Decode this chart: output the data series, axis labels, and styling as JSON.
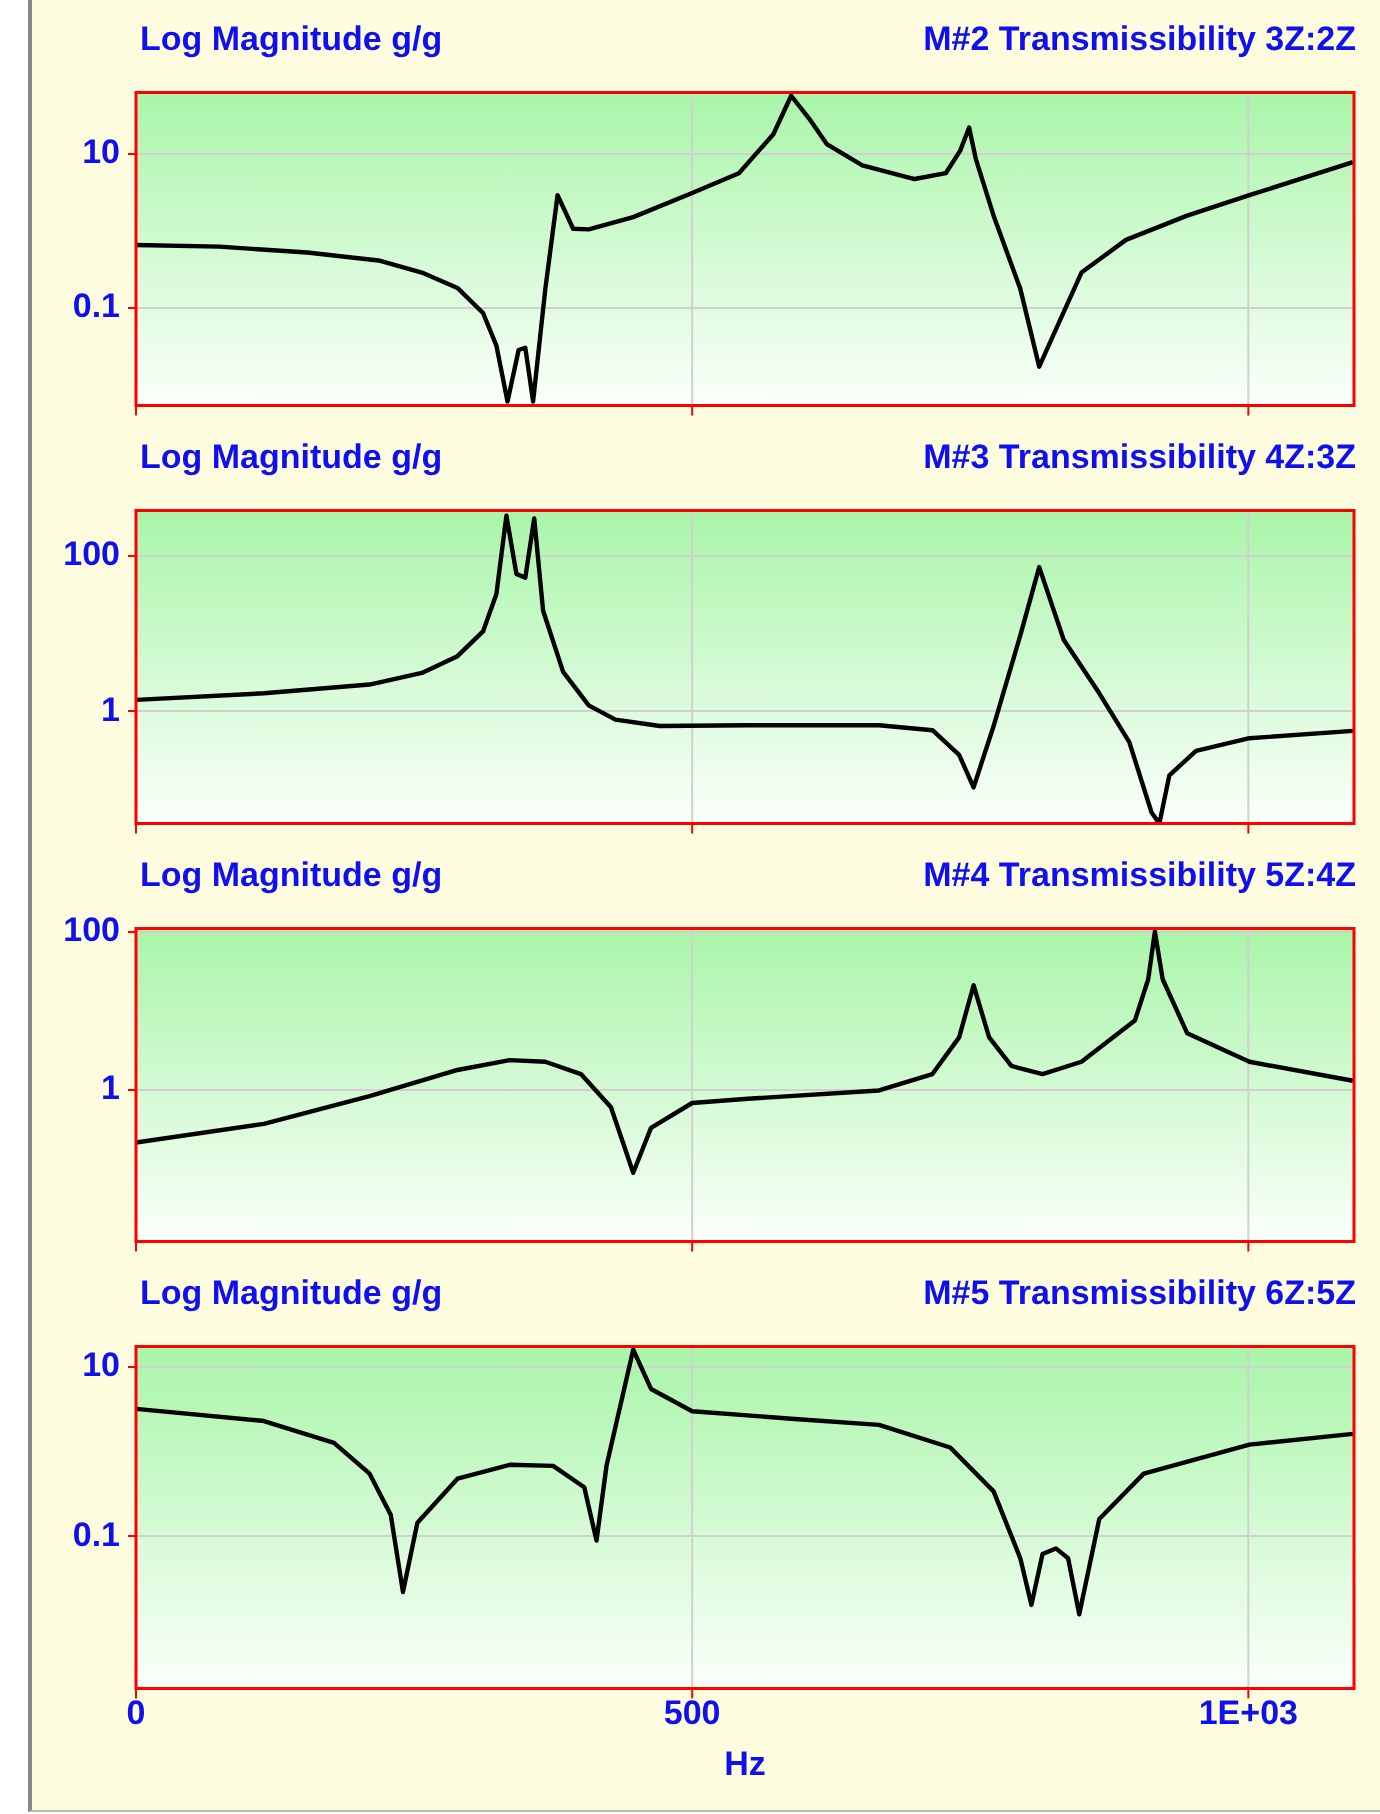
{
  "chart_data": [
    {
      "type": "line",
      "title": "M#2 Transmissibility 3Z:2Z",
      "ylabel": "Log Magnitude g/g",
      "color": "#000000",
      "marker": "none",
      "log": "y",
      "grid": true,
      "tick_labels": "y",
      "xlim": [
        0,
        1095
      ],
      "xticks": [
        {
          "value": 0,
          "label": null
        },
        {
          "value": 500,
          "label": null
        },
        {
          "value": 1000,
          "label": null
        }
      ],
      "ylim": [
        0.0053,
        63
      ],
      "yticks": [
        10,
        0.1
      ],
      "x": [
        0,
        75,
        154,
        218,
        257,
        289,
        312,
        324,
        334,
        344,
        350,
        357,
        368,
        379,
        393,
        407,
        447,
        500,
        542,
        573,
        589,
        605,
        621,
        653,
        700,
        728,
        741,
        749,
        755,
        771,
        795,
        812,
        827,
        850,
        890,
        945,
        1001,
        1094
      ],
      "values": [
        0.65,
        0.62,
        0.52,
        0.41,
        0.285,
        0.18,
        0.085,
        0.032,
        0.006,
        0.028,
        0.03,
        0.006,
        0.175,
        2.9,
        1.06,
        1.04,
        1.5,
        3.1,
        5.6,
        18,
        57,
        29,
        13.4,
        7.1,
        4.7,
        5.6,
        11,
        22,
        8.6,
        1.57,
        0.175,
        0.017,
        0.052,
        0.285,
        0.76,
        1.57,
        2.9,
        7.8
      ]
    },
    {
      "type": "line",
      "title": "M#3 Transmissibility 4Z:3Z",
      "ylabel": "Log Magnitude g/g",
      "color": "#000000",
      "marker": "none",
      "log": "y",
      "grid": true,
      "tick_labels": "y",
      "xlim": [
        0,
        1095
      ],
      "xticks": [
        {
          "value": 0,
          "label": null
        },
        {
          "value": 500,
          "label": null
        },
        {
          "value": 1000,
          "label": null
        }
      ],
      "ylim": [
        0.036,
        380
      ],
      "yticks": [
        100,
        1
      ],
      "x": [
        0,
        115,
        210,
        257,
        289,
        312,
        324,
        333,
        342,
        350,
        358,
        366,
        384,
        407,
        431,
        471,
        550,
        668,
        716,
        740,
        753,
        771,
        795,
        812,
        834,
        866,
        893,
        913,
        920,
        929,
        953,
        1001,
        1094
      ],
      "values": [
        1.4,
        1.7,
        2.2,
        3.1,
        5.1,
        10.6,
        32,
        325,
        58,
        52,
        300,
        19.5,
        3.2,
        1.19,
        0.78,
        0.645,
        0.66,
        0.66,
        0.57,
        0.275,
        0.105,
        0.645,
        9.4,
        71,
        8.3,
        1.7,
        0.4,
        0.05,
        0.036,
        0.15,
        0.31,
        0.45,
        0.56
      ]
    },
    {
      "type": "line",
      "title": "M#4 Transmissibility 5Z:4Z",
      "ylabel": "Log Magnitude g/g",
      "color": "#000000",
      "marker": "none",
      "log": "y",
      "grid": true,
      "tick_labels": "y",
      "xlim": [
        0,
        1095
      ],
      "xticks": [
        {
          "value": 0,
          "label": null
        },
        {
          "value": 500,
          "label": null
        },
        {
          "value": 1000,
          "label": null
        }
      ],
      "ylim": [
        0.012,
        110
      ],
      "yticks": [
        100,
        1
      ],
      "x": [
        0,
        115,
        210,
        289,
        336,
        368,
        400,
        427,
        447,
        463,
        500,
        550,
        668,
        716,
        740,
        753,
        767,
        787,
        815,
        850,
        898,
        910,
        916,
        923,
        945,
        1001,
        1094
      ],
      "values": [
        0.215,
        0.37,
        0.83,
        1.78,
        2.37,
        2.26,
        1.58,
        0.6,
        0.089,
        0.33,
        0.68,
        0.77,
        0.98,
        1.58,
        4.6,
        21,
        4.6,
        2.0,
        1.58,
        2.26,
        7.5,
        25,
        100,
        25,
        5.2,
        2.26,
        1.3
      ]
    },
    {
      "type": "line",
      "title": "M#5 Transmissibility 6Z:5Z",
      "ylabel": "Log Magnitude g/g",
      "xlabel": "Hz",
      "color": "#000000",
      "marker": "none",
      "log": "y",
      "grid": true,
      "xlim": [
        0,
        1095
      ],
      "xticks": [
        0,
        500,
        {
          "value": 1000,
          "label": "1E+03"
        }
      ],
      "ylim": [
        0.0016,
        17.5
      ],
      "yticks": [
        10,
        0.1
      ],
      "x": [
        0,
        115,
        178,
        210,
        229,
        240,
        253,
        289,
        336,
        375,
        403,
        414,
        423,
        447,
        463,
        500,
        589,
        668,
        732,
        771,
        795,
        805,
        815,
        827,
        838,
        848,
        866,
        906,
        1001,
        1094
      ],
      "values": [
        3.2,
        2.3,
        1.27,
        0.55,
        0.18,
        0.022,
        0.145,
        0.48,
        0.7,
        0.68,
        0.38,
        0.089,
        0.68,
        16,
        5.5,
        3.0,
        2.45,
        2.07,
        1.12,
        0.34,
        0.055,
        0.0155,
        0.062,
        0.072,
        0.055,
        0.012,
        0.16,
        0.55,
        1.21,
        1.62
      ]
    }
  ]
}
